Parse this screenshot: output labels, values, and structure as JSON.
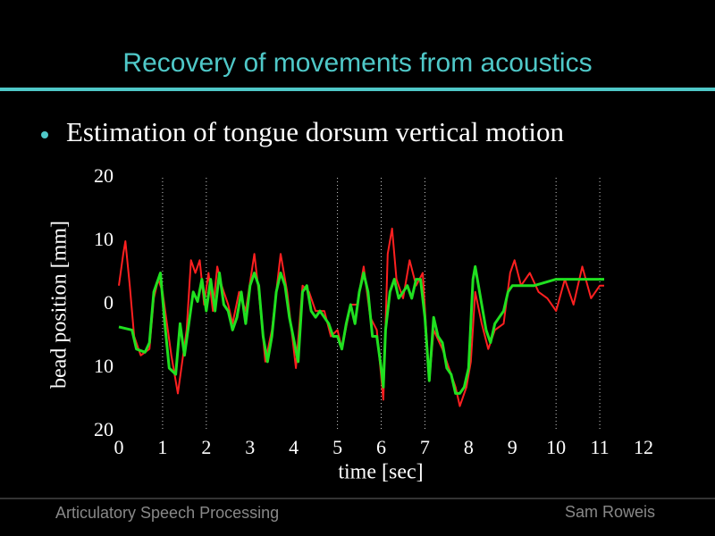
{
  "slide": {
    "title": "Recovery of movements from acoustics",
    "bullet": "Estimation of tongue dorsum vertical motion",
    "footer_left": "Articulatory Speech Processing",
    "footer_right": "Sam Roweis"
  },
  "chart_data": {
    "type": "line",
    "xlabel": "time [sec]",
    "ylabel": "bead position [mm]",
    "xlim": [
      0,
      12
    ],
    "ylim": [
      -20,
      20
    ],
    "xticks": [
      0,
      1,
      2,
      3,
      4,
      5,
      6,
      7,
      8,
      9,
      10,
      11,
      12
    ],
    "yticks": [
      {
        "value": -20,
        "label": "20"
      },
      {
        "value": -10,
        "label": "10"
      },
      0,
      10,
      20
    ],
    "vlines": [
      1,
      2,
      5,
      6,
      7,
      10,
      11
    ],
    "series": [
      {
        "color": "#ff2020",
        "x": [
          0,
          0.1,
          0.15,
          0.25,
          0.35,
          0.5,
          0.7,
          0.8,
          0.9,
          1.0,
          1.1,
          1.2,
          1.35,
          1.45,
          1.55,
          1.65,
          1.75,
          1.85,
          1.95,
          2.05,
          2.15,
          2.25,
          2.35,
          2.5,
          2.6,
          2.75,
          2.9,
          3.1,
          3.2,
          3.35,
          3.5,
          3.7,
          3.85,
          4.05,
          4.2,
          4.35,
          4.5,
          4.7,
          4.85,
          5.0,
          5.1,
          5.3,
          5.45,
          5.6,
          5.75,
          5.9,
          6.05,
          6.15,
          6.25,
          6.35,
          6.5,
          6.65,
          6.8,
          6.95,
          7.1,
          7.2,
          7.4,
          7.55,
          7.7,
          7.8,
          7.95,
          8.05,
          8.15,
          8.3,
          8.45,
          8.6,
          8.8,
          8.95,
          9.05,
          9.2,
          9.4,
          9.6,
          9.8,
          10.0,
          10.2,
          10.4,
          10.6,
          10.8,
          11.0,
          11.1
        ],
        "values": [
          3,
          8,
          10,
          3,
          -5,
          -8,
          -7,
          1,
          4,
          2,
          -3,
          -8,
          -14,
          -9,
          -4,
          7,
          5,
          7,
          0,
          5,
          -1,
          6,
          3,
          0,
          -3,
          2,
          -1,
          8,
          2,
          -9,
          -4,
          8,
          2,
          -10,
          3,
          2,
          -1,
          -1,
          -5,
          -4,
          -7,
          0,
          0,
          6,
          -2,
          -4,
          -15,
          8,
          12,
          4,
          1,
          7,
          3,
          5,
          -12,
          -4,
          -7,
          -10,
          -13,
          -16,
          -13,
          -9,
          2,
          -3,
          -7,
          -4,
          -3,
          5,
          7,
          3,
          5,
          2,
          1,
          -1,
          4,
          0,
          6,
          1,
          3,
          3
        ]
      },
      {
        "color": "#20e020",
        "x": [
          0,
          0.3,
          0.4,
          0.6,
          0.7,
          0.8,
          0.95,
          1.05,
          1.15,
          1.3,
          1.4,
          1.5,
          1.6,
          1.7,
          1.8,
          1.9,
          2.0,
          2.1,
          2.2,
          2.3,
          2.4,
          2.5,
          2.6,
          2.7,
          2.8,
          2.9,
          3.0,
          3.1,
          3.2,
          3.3,
          3.4,
          3.5,
          3.6,
          3.7,
          3.8,
          3.9,
          4.1,
          4.2,
          4.3,
          4.4,
          4.5,
          4.6,
          4.7,
          4.8,
          4.9,
          5.0,
          5.1,
          5.2,
          5.3,
          5.4,
          5.5,
          5.6,
          5.7,
          5.8,
          5.9,
          6.0,
          6.05,
          6.1,
          6.2,
          6.3,
          6.4,
          6.5,
          6.6,
          6.7,
          6.8,
          6.9,
          7.0,
          7.1,
          7.2,
          7.3,
          7.4,
          7.5,
          7.6,
          7.7,
          7.8,
          7.9,
          8.0,
          8.1,
          8.15,
          8.3,
          8.4,
          8.5,
          8.6,
          8.7,
          8.8,
          8.9,
          9.0,
          9.5,
          10.0,
          10.5,
          11.0,
          11.1
        ],
        "values": [
          -3.5,
          -4,
          -7,
          -7.5,
          -6,
          2,
          5,
          -3,
          -10,
          -11,
          -3,
          -8,
          -3,
          2,
          0.5,
          4,
          -1,
          4,
          -1,
          5,
          0,
          -1,
          -4,
          -2,
          2,
          -3,
          3,
          5,
          3,
          -5,
          -9,
          -5,
          2,
          5,
          3,
          -2,
          -9,
          2,
          3,
          -1,
          -2,
          -1,
          -2,
          -3,
          -5,
          -5,
          -7,
          -3,
          0,
          -3,
          2,
          5,
          2,
          -5,
          -5,
          -10,
          -13,
          -4,
          2,
          4,
          1,
          2,
          3,
          1,
          4,
          4,
          -2,
          -12,
          -2,
          -5,
          -6,
          -10,
          -11,
          -14,
          -14,
          -13,
          -10,
          4,
          6,
          0,
          -4,
          -6,
          -3,
          -2,
          -1,
          2,
          3,
          3,
          4,
          4,
          4,
          4
        ]
      }
    ]
  }
}
